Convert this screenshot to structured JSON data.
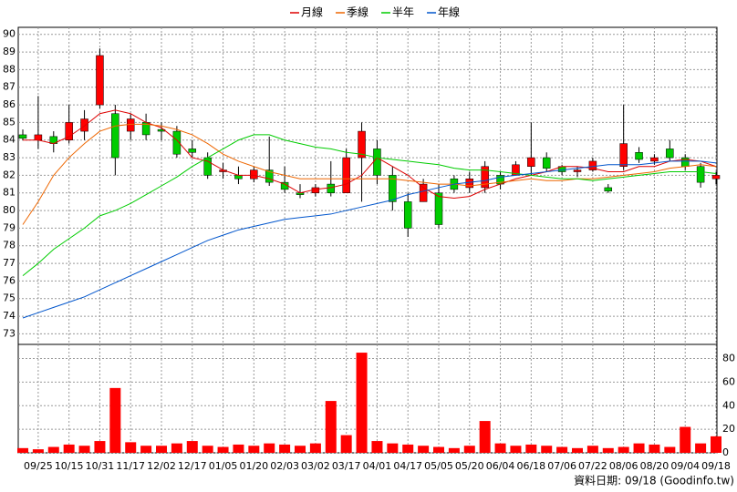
{
  "chart_data": [
    {
      "type": "candlestick",
      "categories": [
        null,
        "09/25",
        null,
        "10/15",
        null,
        "10/31",
        null,
        "11/17",
        null,
        "12/02",
        null,
        "12/17",
        null,
        "01/05",
        null,
        "01/20",
        null,
        "02/03",
        null,
        "03/02",
        null,
        "03/17",
        null,
        "04/01",
        null,
        "04/17",
        null,
        "05/05",
        null,
        "05/20",
        null,
        "06/04",
        null,
        "06/18",
        null,
        "07/06",
        null,
        "07/22",
        null,
        "08/06",
        null,
        "08/20",
        null,
        "09/04",
        null,
        "09/18"
      ],
      "open": [
        84.3,
        84,
        84.2,
        84,
        84.5,
        86,
        85.5,
        84.5,
        85,
        84.6,
        84.5,
        83.5,
        83,
        82.2,
        82,
        81.8,
        82.3,
        81.6,
        81,
        81,
        81.5,
        81,
        83,
        83.5,
        82,
        80.5,
        80.5,
        81,
        81.8,
        81.3,
        81.3,
        82,
        82,
        82.5,
        83,
        82.5,
        82.2,
        82.3,
        81.3,
        82.5,
        83.3,
        82.8,
        83.5,
        83,
        82.5,
        81.8
      ],
      "high": [
        84.6,
        86.5,
        84.5,
        86,
        85.7,
        89.2,
        86,
        85.5,
        85.5,
        85,
        84.8,
        84,
        83.3,
        82.7,
        82.5,
        82.5,
        84.2,
        82.5,
        81.5,
        81.5,
        82.8,
        83.5,
        85,
        84,
        82.5,
        81,
        81.8,
        81.5,
        82,
        82.2,
        82.8,
        82.2,
        82.8,
        85,
        83.3,
        82.6,
        82.5,
        83,
        81.5,
        86,
        83.6,
        83.2,
        84,
        83.2,
        82.7,
        82.2
      ],
      "low": [
        84,
        83.5,
        83.3,
        83.8,
        84,
        85.8,
        82,
        84,
        84,
        84,
        83,
        83,
        81.8,
        81.8,
        81.5,
        81.6,
        81.4,
        81,
        80.7,
        80.8,
        80.8,
        81,
        80.5,
        81.5,
        80,
        78.5,
        80.5,
        79,
        81,
        81,
        81,
        81.2,
        82,
        82,
        82.2,
        82,
        81.9,
        82.2,
        81,
        82.3,
        82.7,
        82.6,
        82.8,
        82.3,
        81.3,
        81.5
      ],
      "close": [
        84.1,
        84.3,
        83.8,
        85,
        85.2,
        88.8,
        83,
        85.2,
        84.3,
        84.5,
        83.2,
        83.3,
        82,
        82.3,
        81.8,
        82.3,
        81.6,
        81.2,
        80.9,
        81.3,
        81,
        83,
        84.5,
        82,
        80.5,
        79,
        81.5,
        79.2,
        81.2,
        81.8,
        82.5,
        81.5,
        82.6,
        83,
        82.4,
        82.2,
        82.3,
        82.8,
        81.1,
        83.8,
        82.9,
        83,
        83,
        82.5,
        81.6,
        82
      ],
      "up_color": "#ff0000",
      "down_color": "#00cc00",
      "series": [
        {
          "name": "月線",
          "color": "#dd0000",
          "values": [
            84,
            84,
            83.8,
            84.2,
            84.8,
            85.5,
            85.7,
            85.5,
            85,
            84.7,
            84,
            83,
            82.8,
            82.3,
            82,
            82,
            81.8,
            81.5,
            81,
            81.2,
            81.3,
            81.5,
            82,
            83,
            82.5,
            82,
            81.3,
            80.8,
            80.7,
            80.8,
            81.2,
            81.5,
            81.8,
            82,
            82.2,
            82.5,
            82.5,
            82.4,
            82.2,
            82.2,
            82.5,
            82.5,
            82.8,
            82.9,
            82.8,
            82.5
          ]
        },
        {
          "name": "季線",
          "color": "#ee6600",
          "values": [
            79.2,
            80.5,
            82,
            83,
            83.8,
            84.5,
            84.8,
            84.9,
            84.9,
            84.8,
            84.6,
            84.3,
            83.8,
            83.2,
            82.8,
            82.5,
            82.2,
            82,
            81.8,
            81.8,
            81.8,
            81.8,
            81.8,
            81.8,
            81.8,
            81.7,
            81.6,
            81.5,
            81.5,
            81.4,
            81.5,
            81.6,
            81.7,
            81.8,
            81.7,
            81.7,
            81.8,
            81.8,
            81.9,
            82,
            82.1,
            82.2,
            82.4,
            82.5,
            82.6,
            82.5
          ]
        },
        {
          "name": "半年",
          "color": "#00cc00",
          "values": [
            76.3,
            77,
            77.8,
            78.4,
            79,
            79.7,
            80,
            80.4,
            80.9,
            81.4,
            81.9,
            82.5,
            83,
            83.5,
            84,
            84.3,
            84.3,
            84,
            83.8,
            83.6,
            83.5,
            83.3,
            83.2,
            83,
            82.9,
            82.8,
            82.7,
            82.6,
            82.4,
            82.3,
            82.3,
            82.2,
            82.1,
            82,
            81.9,
            81.8,
            81.8,
            81.7,
            81.8,
            81.9,
            82,
            82.1,
            82.2,
            82.2,
            82.2,
            82.1
          ]
        },
        {
          "name": "年線",
          "color": "#0055cc",
          "values": [
            73.9,
            74.2,
            74.5,
            74.8,
            75.1,
            75.5,
            75.9,
            76.3,
            76.7,
            77.1,
            77.5,
            77.9,
            78.3,
            78.6,
            78.9,
            79.1,
            79.3,
            79.5,
            79.6,
            79.7,
            79.8,
            80,
            80.2,
            80.4,
            80.6,
            80.9,
            81.1,
            81.3,
            81.5,
            81.6,
            81.7,
            81.9,
            82,
            82.1,
            82.2,
            82.3,
            82.4,
            82.5,
            82.6,
            82.6,
            82.6,
            82.7,
            82.8,
            82.8,
            82.8,
            82.7
          ]
        }
      ],
      "ylim": [
        72.4,
        90.4
      ],
      "yticks": [
        73,
        74,
        75,
        76,
        77,
        78,
        79,
        80,
        81,
        82,
        83,
        84,
        85,
        86,
        87,
        88,
        89,
        90
      ],
      "grid": true
    },
    {
      "type": "bar",
      "values": [
        4,
        3,
        5,
        7,
        6,
        10,
        55,
        9,
        6,
        6,
        8,
        10,
        6,
        5,
        7,
        6,
        8,
        7,
        6,
        8,
        44,
        15,
        85,
        10,
        8,
        7,
        6,
        5,
        4,
        6,
        27,
        8,
        6,
        7,
        6,
        5,
        4,
        6,
        4,
        5,
        8,
        7,
        5,
        22,
        8,
        14
      ],
      "color": "#ff0000",
      "ylim": [
        0,
        92
      ],
      "yticks": [
        0,
        20,
        40,
        60,
        80
      ],
      "grid": true
    }
  ],
  "footer": "資料日期: 09/18 (Goodinfo.tw)"
}
